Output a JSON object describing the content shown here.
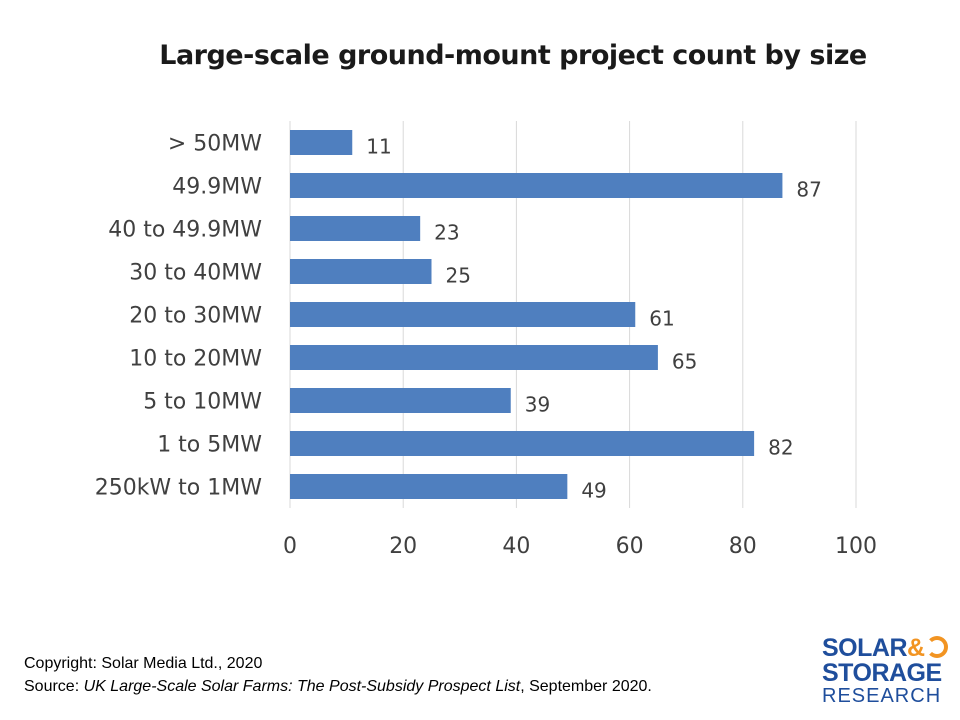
{
  "chart_data": {
    "type": "bar",
    "orientation": "horizontal",
    "title": "Large-scale ground-mount project count by size",
    "categories": [
      "> 50MW",
      "49.9MW",
      "40 to 49.9MW",
      "30 to 40MW",
      "20 to 30MW",
      "10 to 20MW",
      "5 to 10MW",
      "1 to 5MW",
      "250kW to 1MW"
    ],
    "values": [
      11,
      87,
      23,
      25,
      61,
      65,
      39,
      82,
      49
    ],
    "xlim": [
      0,
      100
    ],
    "xticks": [
      "0",
      "20",
      "40",
      "60",
      "80",
      "100"
    ],
    "grid": true,
    "bar_color": "#4f7fbf",
    "legend": "none"
  },
  "footer": {
    "copyright": "Copyright: Solar Media Ltd., 2020",
    "source_prefix": "Source: ",
    "source_title": "UK Large-Scale Solar Farms: The Post-Subsidy Prospect List",
    "source_suffix": ", September 2020."
  },
  "logo": {
    "line1": "SOLAR",
    "amp": "&",
    "line2": "STORAGE",
    "line3": "RESEARCH",
    "brand_color": "#1f4e9c",
    "accent_color": "#f29422"
  }
}
